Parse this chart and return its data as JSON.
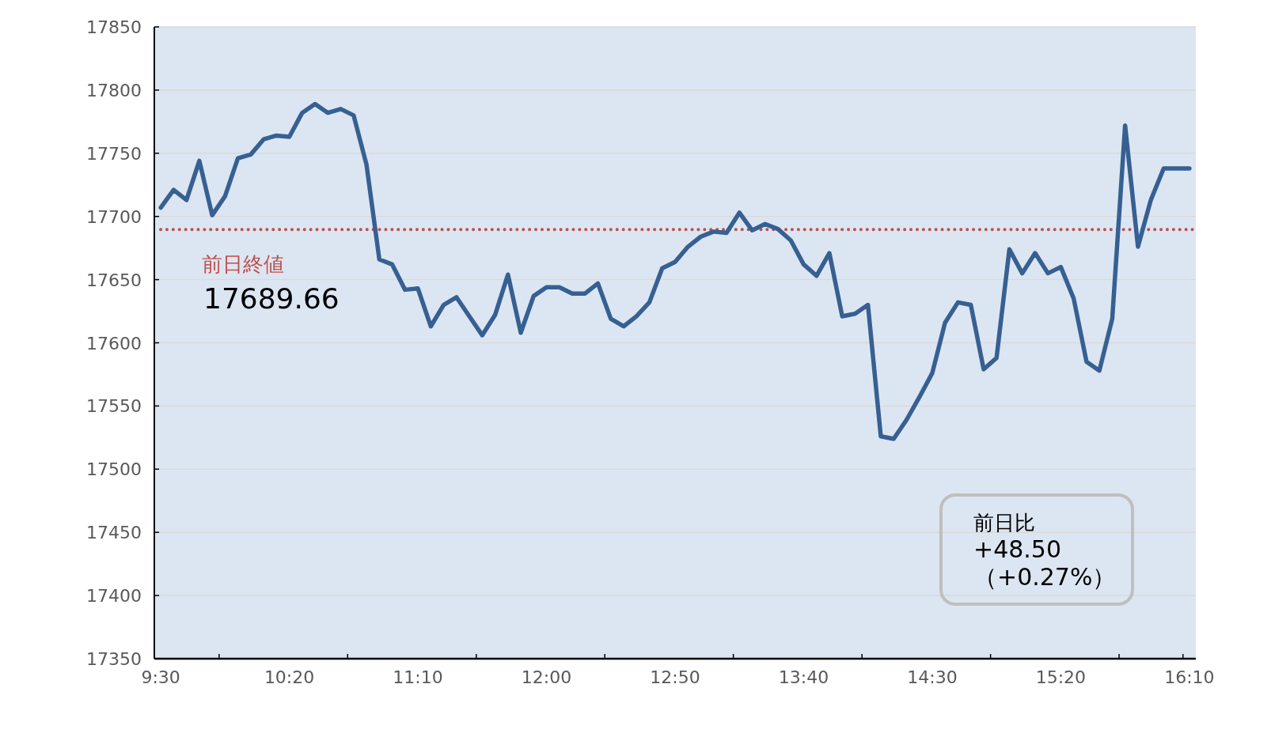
{
  "chart_data": {
    "type": "line",
    "x": [
      9.5,
      9.5833,
      9.6667,
      9.75,
      9.8333,
      9.9167,
      10,
      10.0833,
      10.1667,
      10.25,
      10.3333,
      10.4167,
      10.5,
      10.5833,
      10.6667,
      10.75,
      10.8333,
      10.9167,
      11,
      11.0833,
      11.1667,
      11.25,
      11.3333,
      11.4167,
      11.5,
      11.5833,
      11.6667,
      11.75,
      11.8333,
      11.9167,
      12,
      12.0833,
      12.1667,
      12.25,
      12.3333,
      12.4167,
      12.5,
      12.5833,
      12.6667,
      12.75,
      12.8333,
      12.9167,
      13,
      13.0833,
      13.1667,
      13.25,
      13.3333,
      13.4167,
      13.5,
      13.5833,
      13.6667,
      13.75,
      13.8333,
      13.9167,
      14,
      14.0833,
      14.1667,
      14.25,
      14.3333,
      14.4167,
      14.5,
      14.5833,
      14.6667,
      14.75,
      14.8333,
      14.9167,
      15,
      15.0833,
      15.1667,
      15.25,
      15.3333,
      15.4167,
      15.5,
      15.5833,
      15.6667,
      15.75,
      15.8333,
      15.9167,
      16,
      16.0833,
      16.1667
    ],
    "series": [
      {
        "color": "#376092",
        "values": [
          17707,
          17721,
          17713,
          17744,
          17701,
          17716,
          17746,
          17749,
          17761,
          17764,
          17763,
          17782,
          17789,
          17782,
          17785,
          17780,
          17741,
          17666,
          17662,
          17642,
          17643,
          17613,
          17630,
          17636,
          17621,
          17606,
          17622,
          17654,
          17608,
          17637,
          17644,
          17644,
          17639,
          17639,
          17647,
          17619,
          17613,
          17621,
          17632,
          17659,
          17664,
          17676,
          17684,
          17688,
          17687,
          17703,
          17689,
          17694,
          17690,
          17681,
          17662,
          17653,
          17671,
          17621,
          17623,
          17630,
          17526,
          17524,
          17539,
          17557,
          17576,
          17616,
          17632,
          17630,
          17579,
          17588,
          17674,
          17655,
          17671,
          17655,
          17660,
          17635,
          17585,
          17578,
          17619,
          17772,
          17676,
          17713,
          17738,
          17738,
          17738
        ]
      }
    ],
    "xlim": [
      9.4583,
      16.2083
    ],
    "xticks": [
      {
        "value": 9.5,
        "label": "9:30"
      },
      {
        "value": 9.878,
        "label": null
      },
      {
        "value": 10.3333,
        "label": "10:20"
      },
      {
        "value": 10.711,
        "label": null
      },
      {
        "value": 11.1667,
        "label": "11:10"
      },
      {
        "value": 11.545,
        "label": null
      },
      {
        "value": 12,
        "label": "12:00"
      },
      {
        "value": 12.378,
        "label": null
      },
      {
        "value": 12.8333,
        "label": "12:50"
      },
      {
        "value": 13.211,
        "label": null
      },
      {
        "value": 13.6667,
        "label": "13:40"
      },
      {
        "value": 14.045,
        "label": null
      },
      {
        "value": 14.5,
        "label": "14:30"
      },
      {
        "value": 14.878,
        "label": null
      },
      {
        "value": 15.3333,
        "label": "15:20"
      },
      {
        "value": 15.711,
        "label": null
      },
      {
        "value": 16.125,
        "label": null
      },
      {
        "value": 16.1667,
        "label": "16:10"
      }
    ],
    "ylim": [
      17350,
      17850
    ],
    "yticks": [
      17350,
      17400,
      17450,
      17500,
      17550,
      17600,
      17650,
      17700,
      17750,
      17800,
      17850
    ],
    "grid": "y",
    "ref_lines": [
      {
        "axis": "y",
        "value": 17689.66,
        "label": "前日終値",
        "color": "#c0504d",
        "line_style": "dotted"
      }
    ],
    "annotations": [
      "17689.66",
      "前日比",
      "+48.50",
      "（+0.27%）"
    ]
  }
}
